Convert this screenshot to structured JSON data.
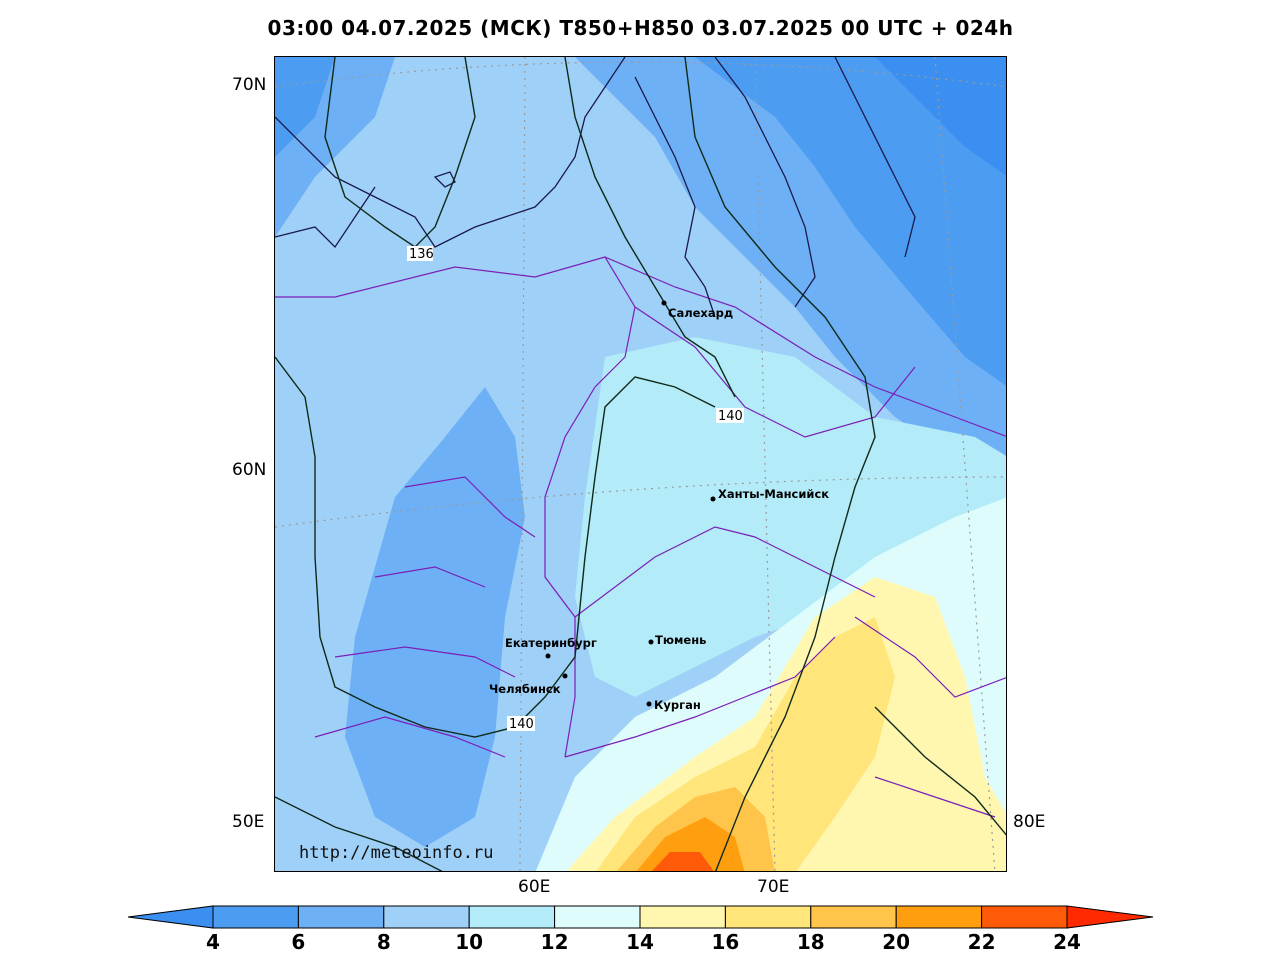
{
  "title": "03:00 04.07.2025 (МСК) T850+H850 03.07.2025 00 UTC + 024h",
  "axes": {
    "lat_labels": [
      "70N",
      "60N",
      "50E"
    ],
    "lon_labels": [
      "60E",
      "70E",
      "80E"
    ]
  },
  "cities": [
    {
      "name": "Салехард"
    },
    {
      "name": "Ханты-Мансийск"
    },
    {
      "name": "Екатеринбург"
    },
    {
      "name": "Тюмень"
    },
    {
      "name": "Челябинск"
    },
    {
      "name": "Курган"
    }
  ],
  "contours": [
    {
      "label": "136"
    },
    {
      "label": "140"
    },
    {
      "label": "140"
    }
  ],
  "watermark": "http://meteoinfo.ru",
  "colorbar": {
    "ticks": [
      "4",
      "6",
      "8",
      "10",
      "12",
      "14",
      "16",
      "18",
      "20",
      "22",
      "24"
    ],
    "colors": [
      "#3a8ff0",
      "#4c9cf2",
      "#6eb0f5",
      "#9fd0f7",
      "#b3ebf8",
      "#dffcfd",
      "#fff7b0",
      "#ffe57a",
      "#ffc54a",
      "#ff9f10",
      "#ff5a08",
      "#ff2a00"
    ]
  }
}
